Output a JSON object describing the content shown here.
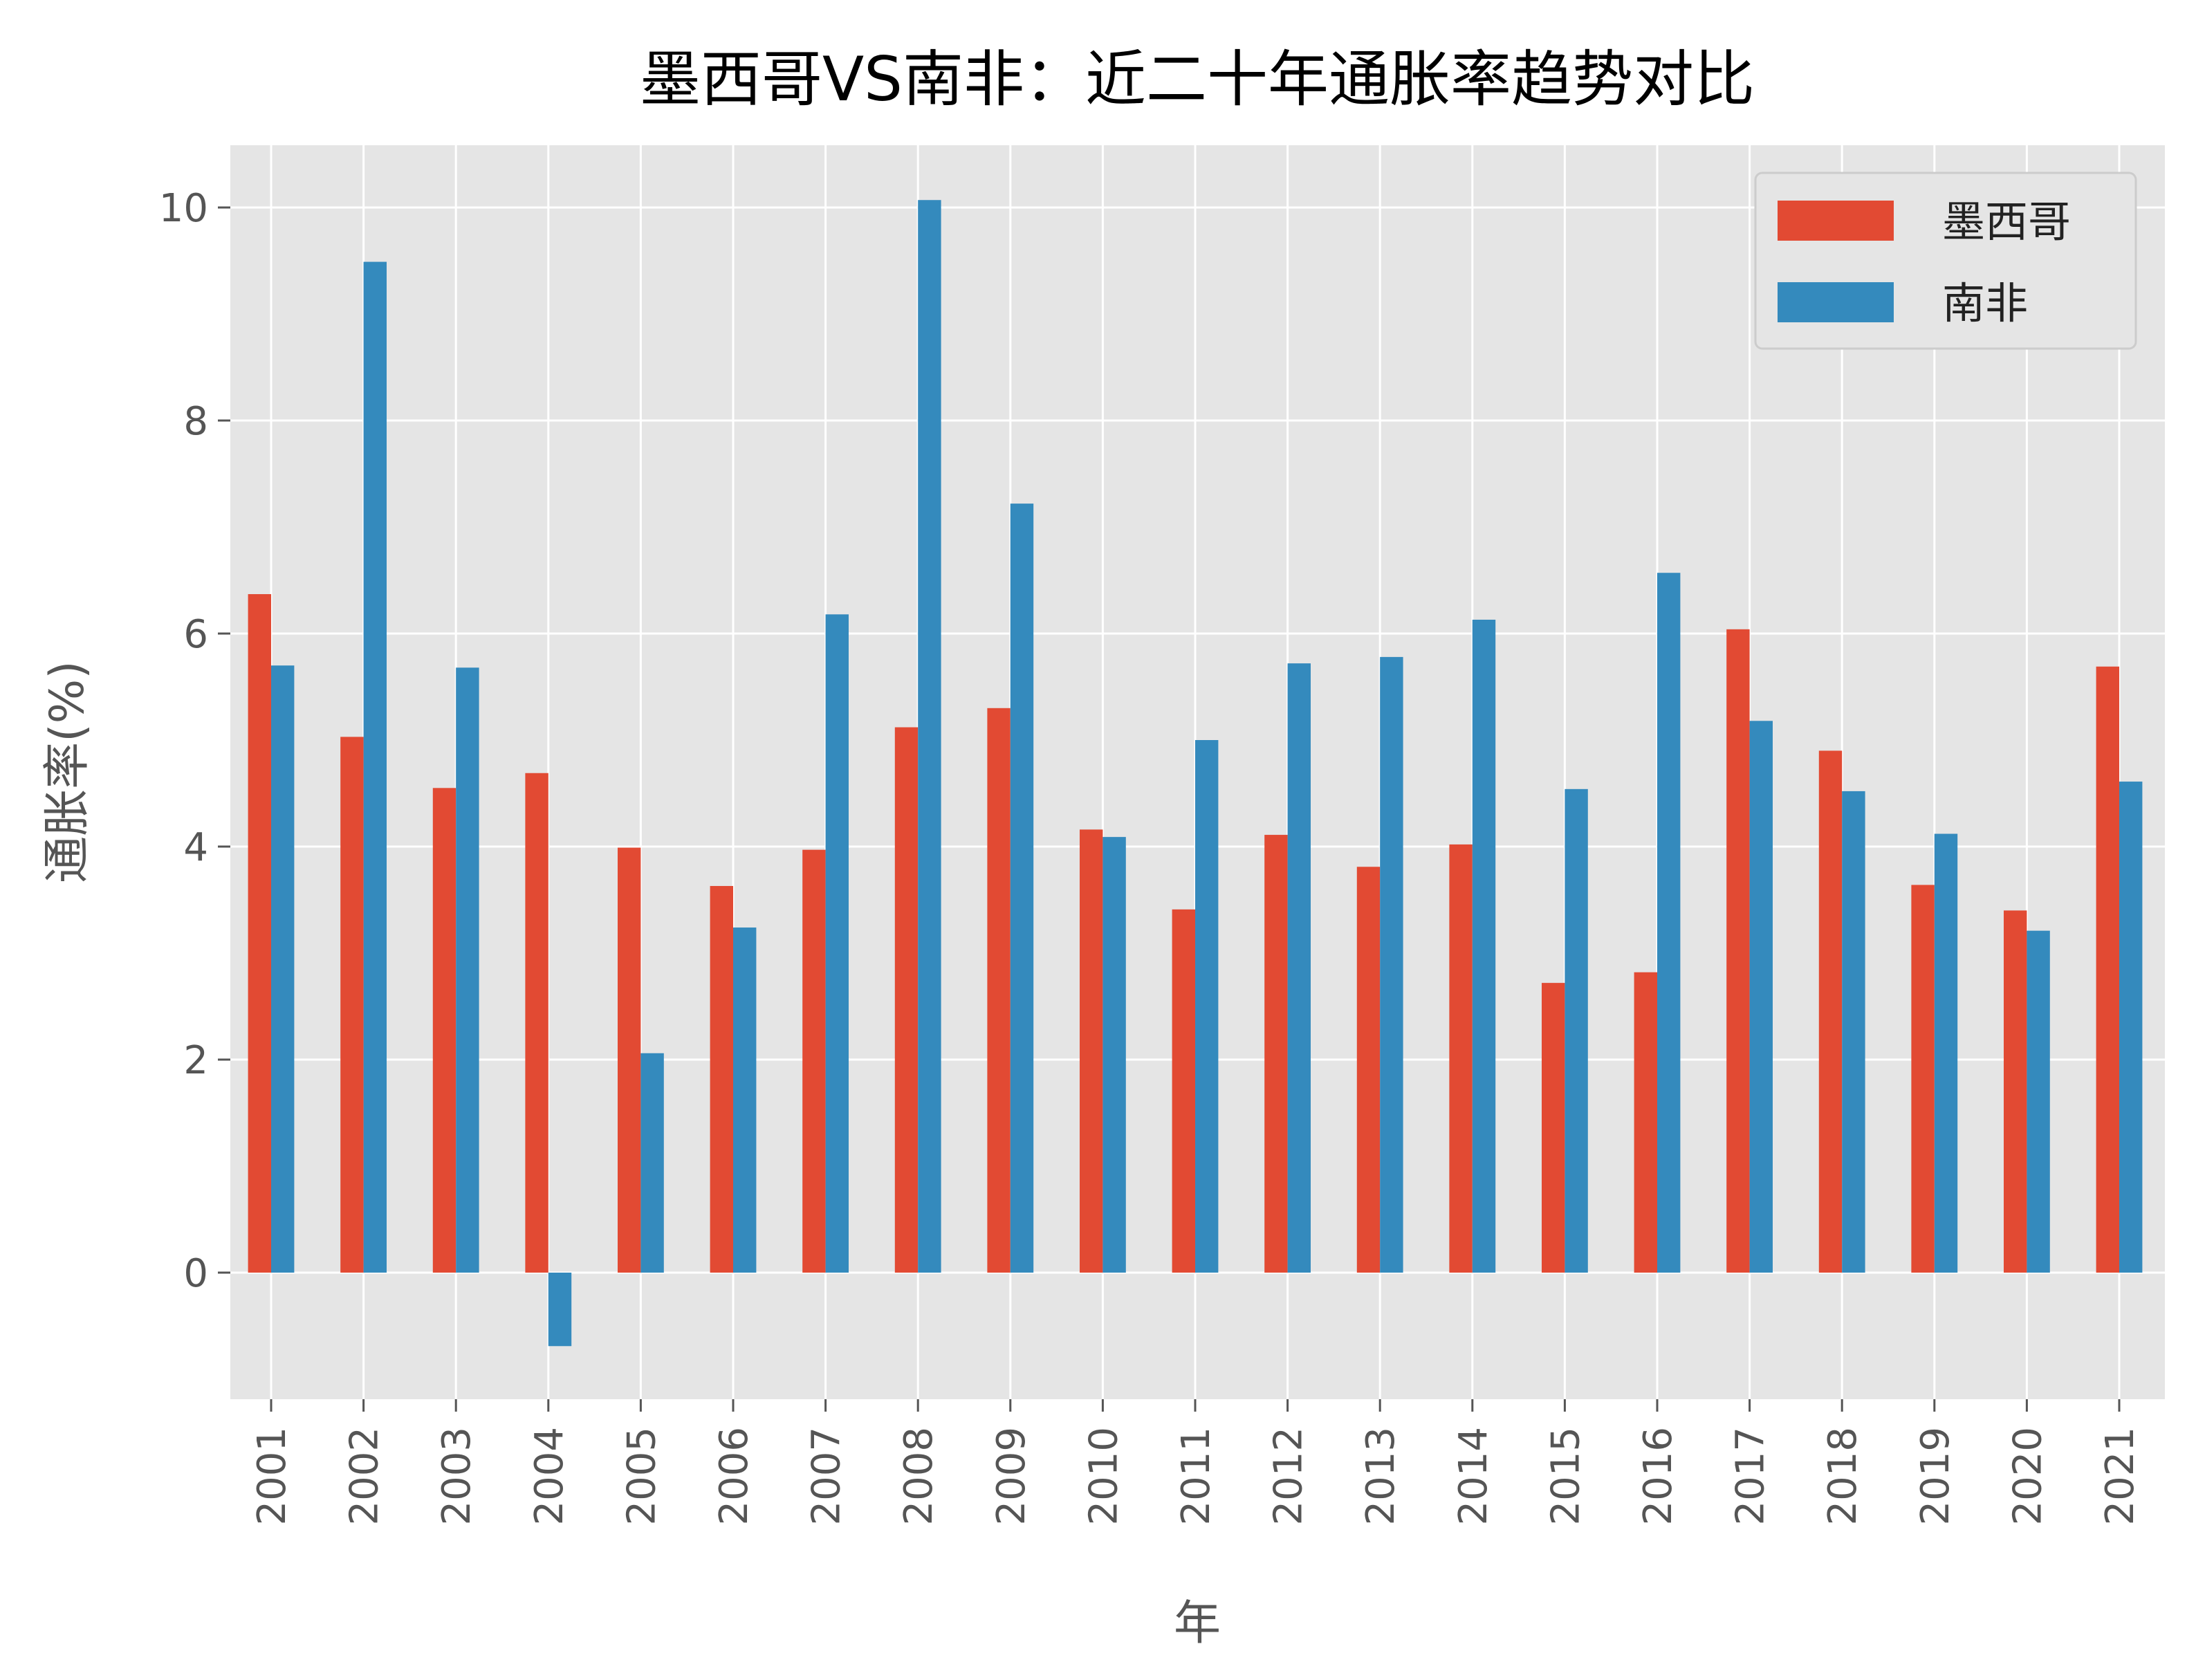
{
  "chart_data": {
    "type": "bar",
    "title": "墨西哥VS南非：近二十年通胀率趋势对比",
    "xlabel": "年",
    "ylabel": "通胀率(%)",
    "categories": [
      "2001",
      "2002",
      "2003",
      "2004",
      "2005",
      "2006",
      "2007",
      "2008",
      "2009",
      "2010",
      "2011",
      "2012",
      "2013",
      "2014",
      "2015",
      "2016",
      "2017",
      "2018",
      "2019",
      "2020",
      "2021"
    ],
    "series": [
      {
        "name": "墨西哥",
        "color": "#E24A33",
        "values": [
          6.37,
          5.03,
          4.55,
          4.69,
          3.99,
          3.63,
          3.97,
          5.12,
          5.3,
          4.16,
          3.41,
          4.11,
          3.81,
          4.02,
          2.72,
          2.82,
          6.04,
          4.9,
          3.64,
          3.4,
          5.69
        ]
      },
      {
        "name": "南非",
        "color": "#348ABD",
        "values": [
          5.7,
          9.49,
          5.68,
          -0.69,
          2.06,
          3.24,
          6.18,
          10.07,
          7.22,
          4.09,
          5.0,
          5.72,
          5.78,
          6.13,
          4.54,
          6.57,
          5.18,
          4.52,
          4.12,
          3.21,
          4.61
        ]
      }
    ],
    "yticks": [
      "0",
      "2",
      "4",
      "6",
      "8",
      "10"
    ],
    "ylim": [
      -1.2,
      10.6
    ],
    "grid": true,
    "legend": "top-right",
    "background": "#E5E5E5",
    "grid_color": "#FFFFFF"
  }
}
